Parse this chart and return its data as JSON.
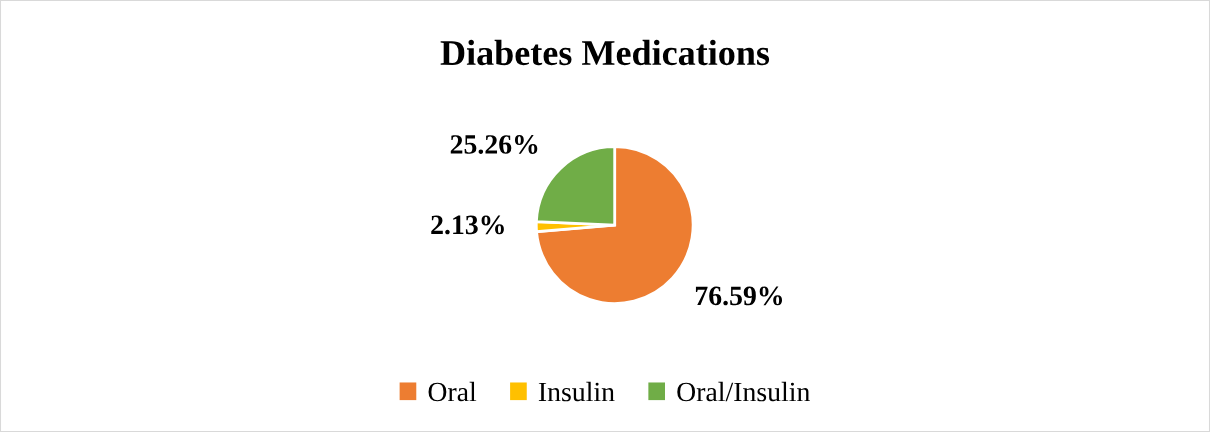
{
  "chart_data": {
    "type": "pie",
    "title": "Diabetes Medications",
    "categories": [
      "Oral",
      "Insulin",
      "Oral/Insulin"
    ],
    "values": [
      76.59,
      2.13,
      25.26
    ],
    "value_labels": [
      "76.59%",
      "2.13%",
      "25.26%"
    ],
    "colors": [
      "#ed7d31",
      "#ffc000",
      "#70ad47"
    ],
    "legend": "bottom"
  }
}
